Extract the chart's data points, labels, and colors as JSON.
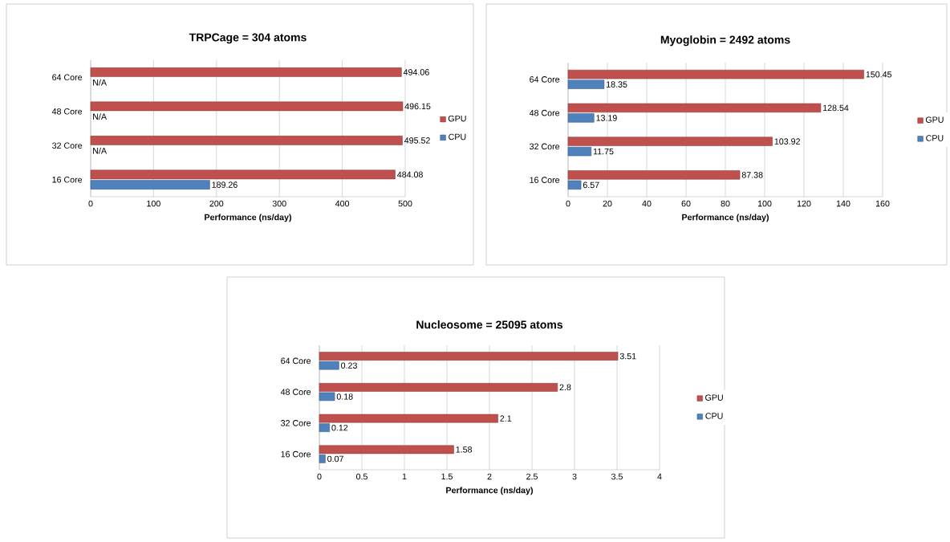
{
  "chart_data": [
    {
      "type": "bar",
      "orientation": "horizontal",
      "title": "TRPCage = 304 atoms",
      "xlabel": "Performance (ns/day)",
      "categories": [
        "64 Core",
        "48 Core",
        "32 Core",
        "16 Core"
      ],
      "series": [
        {
          "name": "GPU",
          "color": "#c0504d",
          "values": [
            494.06,
            496.15,
            495.52,
            484.08
          ],
          "value_labels": [
            "494.06",
            "496.15",
            "495.52",
            "484.08"
          ]
        },
        {
          "name": "CPU",
          "color": "#4f81bd",
          "values": [
            null,
            null,
            null,
            189.26
          ],
          "value_labels": [
            "N/A",
            "N/A",
            "N/A",
            "189.26"
          ]
        }
      ],
      "xlim": [
        0,
        500
      ],
      "xticks": [
        0,
        100,
        200,
        300,
        400,
        500
      ],
      "grid": "x",
      "legend": "right"
    },
    {
      "type": "bar",
      "orientation": "horizontal",
      "title": "Myoglobin = 2492 atoms",
      "xlabel": "Performance (ns/day)",
      "categories": [
        "64 Core",
        "48 Core",
        "32 Core",
        "16 Core"
      ],
      "series": [
        {
          "name": "GPU",
          "color": "#c0504d",
          "values": [
            150.45,
            128.54,
            103.92,
            87.38
          ],
          "value_labels": [
            "150.45",
            "128.54",
            "103.92",
            "87.38"
          ]
        },
        {
          "name": "CPU",
          "color": "#4f81bd",
          "values": [
            18.35,
            13.19,
            11.75,
            6.57
          ],
          "value_labels": [
            "18.35",
            "13.19",
            "11.75",
            "6.57"
          ]
        }
      ],
      "xlim": [
        0,
        160
      ],
      "xticks": [
        0,
        20,
        40,
        60,
        80,
        100,
        120,
        140,
        160
      ],
      "grid": "x",
      "legend": "right"
    },
    {
      "type": "bar",
      "orientation": "horizontal",
      "title": "Nucleosome = 25095 atoms",
      "xlabel": "Performance (ns/day)",
      "categories": [
        "64 Core",
        "48 Core",
        "32 Core",
        "16 Core"
      ],
      "series": [
        {
          "name": "GPU",
          "color": "#c0504d",
          "values": [
            3.51,
            2.8,
            2.1,
            1.58
          ],
          "value_labels": [
            "3.51",
            "2.8",
            "2.1",
            "1.58"
          ]
        },
        {
          "name": "CPU",
          "color": "#4f81bd",
          "values": [
            0.23,
            0.18,
            0.12,
            0.07
          ],
          "value_labels": [
            "0.23",
            "0.18",
            "0.12",
            "0.07"
          ]
        }
      ],
      "xlim": [
        0,
        4
      ],
      "xticks": [
        0,
        0.5,
        1,
        1.5,
        2,
        2.5,
        3,
        3.5,
        4
      ],
      "grid": "x",
      "legend": "right"
    }
  ]
}
